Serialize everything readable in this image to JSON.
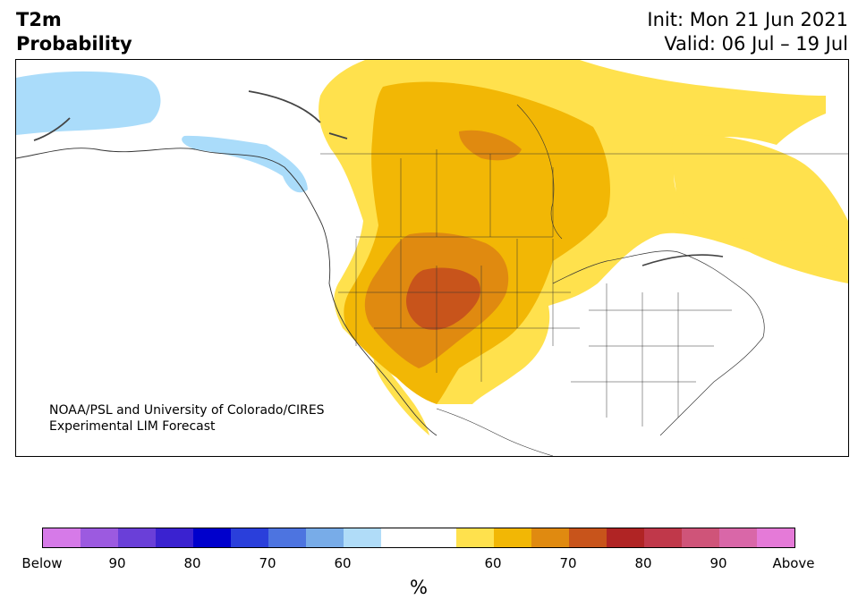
{
  "title": {
    "left_line1": "T2m",
    "left_line2": "Probability",
    "right_line1": "Init: Mon 21 Jun 2021",
    "right_line2": "Valid: 06 Jul – 19 Jul"
  },
  "credit": {
    "line1": "NOAA/PSL and University of Colorado/CIRES",
    "line2": "Experimental LIM Forecast"
  },
  "colorbar": {
    "segments": [
      "#d67ae8",
      "#9c5ae0",
      "#6a3fd8",
      "#3a22d0",
      "#0000cc",
      "#2a3fdb",
      "#4d74e0",
      "#78ace8",
      "#b0dcf8",
      "#ffffff",
      "#ffffff",
      "#ffe14d",
      "#f2b705",
      "#e08a10",
      "#c8541b",
      "#b02424",
      "#c0384a",
      "#cf5479",
      "#d967a8",
      "#e57ad8"
    ],
    "labels": [
      "Below",
      "90",
      "80",
      "70",
      "60",
      "",
      "60",
      "70",
      "80",
      "90",
      "Above"
    ],
    "unit": "%"
  },
  "map": {
    "colors": {
      "ocean": "#ffffff",
      "land_outline": "#333333",
      "below_60": "#aadcfa",
      "above_55": "#ffe14d",
      "above_60": "#f2b705",
      "above_70": "#e08a10",
      "above_80": "#c8541b"
    }
  }
}
